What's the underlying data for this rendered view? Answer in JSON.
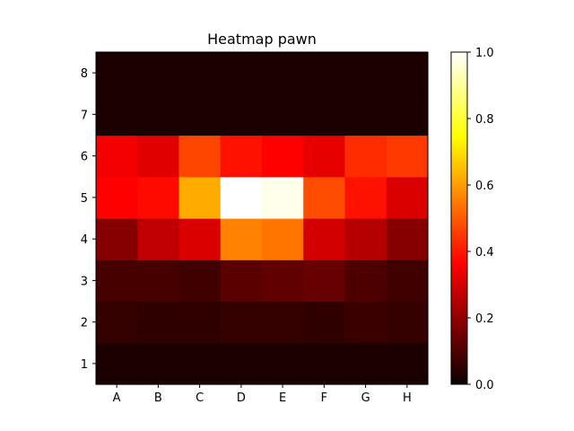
{
  "chart_data": {
    "type": "heatmap",
    "title": "Heatmap pawn",
    "xlabel": "",
    "ylabel": "",
    "x_categories": [
      "A",
      "B",
      "C",
      "D",
      "E",
      "F",
      "G",
      "H"
    ],
    "y_categories": [
      "1",
      "2",
      "3",
      "4",
      "5",
      "6",
      "7",
      "8"
    ],
    "values": [
      [
        0.0,
        0.0,
        0.0,
        0.0,
        0.0,
        0.0,
        0.0,
        0.0
      ],
      [
        0.04,
        0.03,
        0.03,
        0.04,
        0.04,
        0.03,
        0.05,
        0.04
      ],
      [
        0.07,
        0.07,
        0.06,
        0.1,
        0.11,
        0.12,
        0.08,
        0.06
      ],
      [
        0.17,
        0.26,
        0.3,
        0.56,
        0.54,
        0.29,
        0.24,
        0.17
      ],
      [
        0.36,
        0.38,
        0.62,
        1.0,
        0.98,
        0.48,
        0.39,
        0.3
      ],
      [
        0.34,
        0.31,
        0.47,
        0.39,
        0.36,
        0.32,
        0.43,
        0.45
      ],
      [
        0.0,
        0.0,
        0.0,
        0.0,
        0.0,
        0.0,
        0.0,
        0.0
      ],
      [
        0.0,
        0.0,
        0.0,
        0.0,
        0.0,
        0.0,
        0.0,
        0.0
      ]
    ],
    "colormap": "hot",
    "colorbar": {
      "min": 0.0,
      "max": 1.0,
      "ticks": [
        "0.0",
        "0.2",
        "0.4",
        "0.6",
        "0.8",
        "1.0"
      ]
    },
    "grid": false
  }
}
